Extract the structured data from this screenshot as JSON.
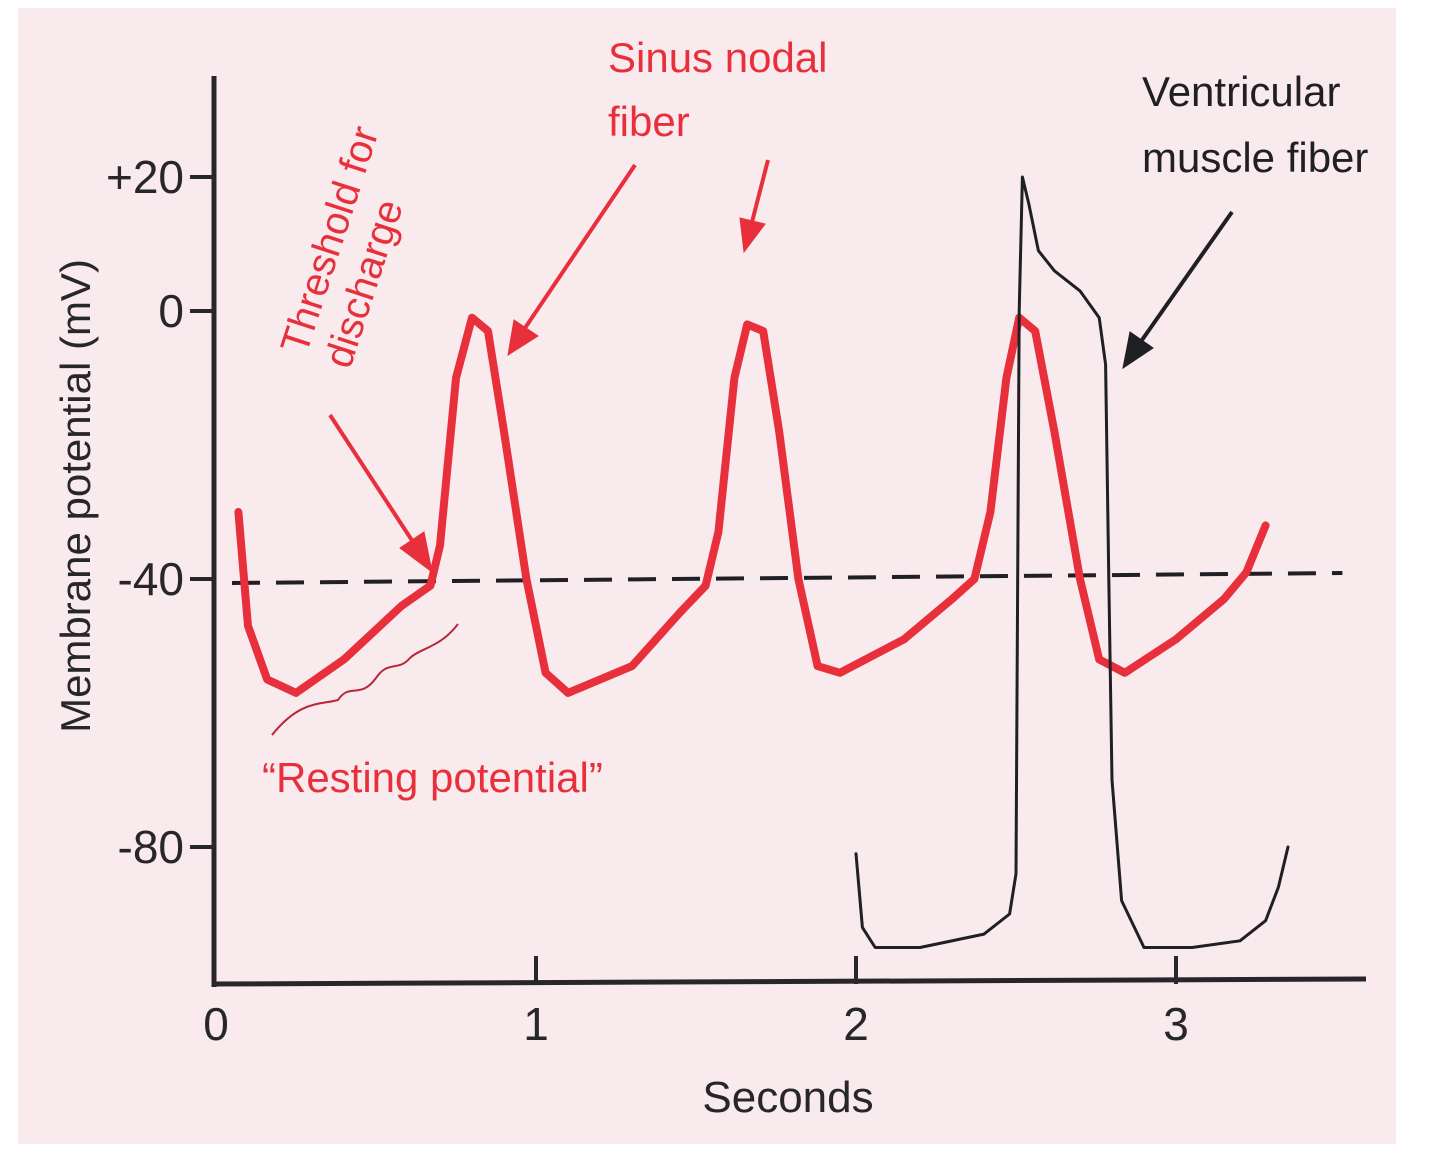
{
  "chart_data": {
    "type": "line",
    "title": "",
    "xlabel": "Seconds",
    "ylabel": "Membrane potential (mV)",
    "xlim": [
      0,
      3.6
    ],
    "ylim": [
      -100,
      38
    ],
    "x_ticks": [
      {
        "value": 0,
        "label": "0"
      },
      {
        "value": 1,
        "label": "1"
      },
      {
        "value": 2,
        "label": "2"
      },
      {
        "value": 3,
        "label": "3"
      }
    ],
    "y_ticks": [
      {
        "value": 20,
        "label": "+20"
      },
      {
        "value": 0,
        "label": "0"
      },
      {
        "value": -40,
        "label": "-40"
      },
      {
        "value": -80,
        "label": "-80"
      }
    ],
    "series": [
      {
        "key": "sinus",
        "color": "#e8303c",
        "points": [
          [
            0.07,
            -30
          ],
          [
            0.1,
            -47
          ],
          [
            0.16,
            -55
          ],
          [
            0.25,
            -57
          ],
          [
            0.4,
            -52
          ],
          [
            0.58,
            -44
          ],
          [
            0.67,
            -41
          ],
          [
            0.7,
            -35
          ],
          [
            0.75,
            -10
          ],
          [
            0.8,
            -1
          ],
          [
            0.85,
            -3
          ],
          [
            0.9,
            -18
          ],
          [
            0.97,
            -40
          ],
          [
            1.03,
            -54
          ],
          [
            1.1,
            -57
          ],
          [
            1.3,
            -53
          ],
          [
            1.45,
            -45
          ],
          [
            1.53,
            -41
          ],
          [
            1.57,
            -33
          ],
          [
            1.62,
            -10
          ],
          [
            1.66,
            -2
          ],
          [
            1.71,
            -3
          ],
          [
            1.76,
            -18
          ],
          [
            1.82,
            -40
          ],
          [
            1.88,
            -53
          ],
          [
            1.95,
            -54
          ],
          [
            2.15,
            -49
          ],
          [
            2.3,
            -43
          ],
          [
            2.37,
            -40
          ],
          [
            2.42,
            -30
          ],
          [
            2.47,
            -10
          ],
          [
            2.51,
            -1
          ],
          [
            2.56,
            -3
          ],
          [
            2.62,
            -18
          ],
          [
            2.7,
            -40
          ],
          [
            2.76,
            -52
          ],
          [
            2.84,
            -54
          ],
          [
            3,
            -49
          ],
          [
            3.15,
            -43
          ],
          [
            3.22,
            -39
          ],
          [
            3.28,
            -32
          ]
        ]
      },
      {
        "key": "ventricular",
        "color": "#1f1f24",
        "points": [
          [
            2.0,
            -81
          ],
          [
            2.02,
            -92
          ],
          [
            2.06,
            -95
          ],
          [
            2.2,
            -95
          ],
          [
            2.4,
            -93
          ],
          [
            2.48,
            -90
          ],
          [
            2.5,
            -84
          ],
          [
            2.51,
            0
          ],
          [
            2.52,
            20
          ],
          [
            2.54,
            16
          ],
          [
            2.57,
            9
          ],
          [
            2.62,
            6
          ],
          [
            2.7,
            3
          ],
          [
            2.76,
            -1
          ],
          [
            2.78,
            -8
          ],
          [
            2.79,
            -40
          ],
          [
            2.8,
            -70
          ],
          [
            2.83,
            -88
          ],
          [
            2.9,
            -95
          ],
          [
            3.05,
            -95
          ],
          [
            3.2,
            -94
          ],
          [
            3.28,
            -91
          ],
          [
            3.32,
            -86
          ],
          [
            3.35,
            -80
          ]
        ]
      }
    ],
    "threshold": {
      "value": -40,
      "color": "#1f1f24"
    },
    "annotations": {
      "threshold_line1": "Threshold for",
      "threshold_line2": "discharge",
      "sinus_line1": "Sinus nodal",
      "sinus_line2": "fiber",
      "ventricular_line1": "Ventricular",
      "ventricular_line2": "muscle fiber",
      "resting": "“Resting potential”"
    },
    "colors": {
      "background": "#f9ebed",
      "axis": "#26262b",
      "annotation_red": "#e8303c",
      "annotation_black": "#1f1f24"
    }
  }
}
